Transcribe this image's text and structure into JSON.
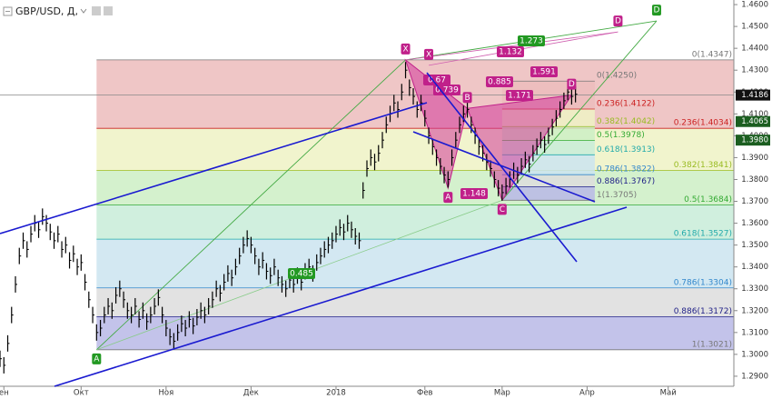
{
  "chart_data": {
    "type": "ohlc",
    "title": "GBP/USD, Д,",
    "xlim": [
      0,
      190
    ],
    "xticks": [
      {
        "value": 1,
        "label": "ен"
      },
      {
        "value": 21,
        "label": "Окт"
      },
      {
        "value": 43,
        "label": "Ноя"
      },
      {
        "value": 65,
        "label": "Дек"
      },
      {
        "value": 87,
        "label": "2018"
      },
      {
        "value": 110,
        "label": "Фев"
      },
      {
        "value": 130,
        "label": "Мар"
      },
      {
        "value": 152,
        "label": "Апр"
      },
      {
        "value": 173,
        "label": "Май"
      }
    ],
    "ylim": [
      1.2854,
      1.4621
    ],
    "yticks": [
      {
        "value": 1.46,
        "label": "1.4600"
      },
      {
        "value": 1.45,
        "label": "1.4500"
      },
      {
        "value": 1.44,
        "label": "1.4400"
      },
      {
        "value": 1.43,
        "label": "1.4300"
      },
      {
        "value": 1.42,
        "label": "1.4200"
      },
      {
        "value": 1.41,
        "label": "1.4100"
      },
      {
        "value": 1.4,
        "label": "1.4000"
      },
      {
        "value": 1.39,
        "label": "1.3900"
      },
      {
        "value": 1.38,
        "label": "1.3800"
      },
      {
        "value": 1.37,
        "label": "1.3700"
      },
      {
        "value": 1.36,
        "label": "1.3600"
      },
      {
        "value": 1.35,
        "label": "1.3500"
      },
      {
        "value": 1.34,
        "label": "1.3400"
      },
      {
        "value": 1.33,
        "label": "1.3300"
      },
      {
        "value": 1.32,
        "label": "1.3200"
      },
      {
        "value": 1.31,
        "label": "1.3100"
      },
      {
        "value": 1.3,
        "label": "1.3000"
      },
      {
        "value": 1.29,
        "label": "1.2900"
      }
    ],
    "values": [
      1.298,
      1.295,
      1.305,
      1.318,
      1.332,
      1.345,
      1.352,
      1.348,
      1.355,
      1.36,
      1.357,
      1.363,
      1.36,
      1.356,
      1.352,
      1.355,
      1.348,
      1.35,
      1.343,
      1.346,
      1.34,
      1.342,
      1.333,
      1.325,
      1.318,
      1.31,
      1.312,
      1.318,
      1.322,
      1.32,
      1.327,
      1.33,
      1.325,
      1.32,
      1.318,
      1.322,
      1.316,
      1.32,
      1.315,
      1.318,
      1.322,
      1.326,
      1.318,
      1.312,
      1.308,
      1.306,
      1.31,
      1.314,
      1.312,
      1.316,
      1.313,
      1.317,
      1.32,
      1.318,
      1.322,
      1.325,
      1.33,
      1.328,
      1.333,
      1.337,
      1.335,
      1.34,
      1.345,
      1.35,
      1.353,
      1.35,
      1.345,
      1.34,
      1.343,
      1.338,
      1.336,
      1.34,
      1.335,
      1.332,
      1.33,
      1.334,
      1.332,
      1.336,
      1.333,
      1.338,
      1.34,
      1.337,
      1.342,
      1.345,
      1.348,
      1.35,
      1.352,
      1.355,
      1.358,
      1.356,
      1.36,
      1.357,
      1.354,
      1.352,
      1.375,
      1.385,
      1.39,
      1.388,
      1.392,
      1.398,
      1.405,
      1.41,
      1.415,
      1.412,
      1.42,
      1.43,
      1.422,
      1.418,
      1.412,
      1.415,
      1.408,
      1.4,
      1.395,
      1.39,
      1.386,
      1.382,
      1.38,
      1.39,
      1.398,
      1.405,
      1.41,
      1.412,
      1.405,
      1.4,
      1.395,
      1.392,
      1.388,
      1.385,
      1.38,
      1.376,
      1.374,
      1.377,
      1.38,
      1.384,
      1.382,
      1.386,
      1.389,
      1.387,
      1.392,
      1.395,
      1.398,
      1.396,
      1.4,
      1.404,
      1.408,
      1.412,
      1.416,
      1.42,
      1.418,
      1.419
    ],
    "color": "#000000",
    "fib_main": {
      "from": 25,
      "colors": [
        "#ecbcbc",
        "#eef2c4",
        "#cdeec4",
        "#c8ecd8",
        "#cbe4f0",
        "#dddddd",
        "#b9b9e6"
      ],
      "levels": [
        {
          "value": 1.4347,
          "label": "0(1.4347)",
          "color": "#777777"
        },
        {
          "value": 1.4034,
          "label": "0.236(1.4034)",
          "color": "#cc2222"
        },
        {
          "value": 1.3841,
          "label": "0.382(1.3841)",
          "color": "#99bb22"
        },
        {
          "value": 1.3684,
          "label": "0.5(1.3684)",
          "color": "#33aa33"
        },
        {
          "value": 1.3527,
          "label": "0.618(1.3527)",
          "color": "#22aaaa"
        },
        {
          "value": 1.3304,
          "label": "0.786(1.3304)",
          "color": "#3388cc"
        },
        {
          "value": 1.3172,
          "label": "0.886(1.3172)",
          "color": "#222288"
        },
        {
          "value": 1.3021,
          "label": "1(1.3021)",
          "color": "#777777"
        }
      ]
    },
    "fib_cd": {
      "from": 130,
      "to": 154,
      "colors": [
        "#ecbcbc",
        "#eef2c4",
        "#cdeec4",
        "#c8ecd8",
        "#cbe4f0",
        "#dddddd",
        "#b9b9e6"
      ],
      "levels": [
        {
          "value": 1.425,
          "label": "0(1.4250)",
          "color": "#777777"
        },
        {
          "value": 1.4122,
          "label": "0.236(1.4122)",
          "color": "#cc2222"
        },
        {
          "value": 1.4042,
          "label": "0.382(1.4042)",
          "color": "#99bb22"
        },
        {
          "value": 1.3978,
          "label": "0.5(1.3978)",
          "color": "#33aa33"
        },
        {
          "value": 1.3913,
          "label": "0.618(1.3913)",
          "color": "#22aaaa"
        },
        {
          "value": 1.3822,
          "label": "0.786(1.3822)",
          "color": "#3388cc"
        },
        {
          "value": 1.3767,
          "label": "0.886(1.3767)",
          "color": "#222288"
        },
        {
          "value": 1.3705,
          "label": "1(1.3705)",
          "color": "#777777"
        }
      ]
    },
    "pattern_points": [
      {
        "label": "X",
        "x": 105,
        "y": 1.4347,
        "color": "#c0208a"
      },
      {
        "label": "A",
        "x": 116,
        "y": 1.376,
        "color": "#c0208a"
      },
      {
        "label": "B",
        "x": 121,
        "y": 1.4125,
        "color": "#c0208a"
      },
      {
        "label": "C",
        "x": 130,
        "y": 1.3705,
        "color": "#c0208a"
      },
      {
        "label": "D",
        "x": 148,
        "y": 1.4186,
        "color": "#c0208a"
      },
      {
        "label": "X",
        "x": 111,
        "y": 1.4322,
        "color": "#c0208a"
      },
      {
        "label": "D",
        "x": 160,
        "y": 1.4475,
        "color": "#c0208a"
      },
      {
        "label": "A",
        "x": 25,
        "y": 1.3021,
        "color": "#229922"
      },
      {
        "label": "D",
        "x": 170,
        "y": 1.4525,
        "color": "#229922"
      }
    ],
    "ratios": [
      {
        "value": 0.67,
        "color": "#c0208a"
      },
      {
        "value": 0.739,
        "color": "#c0208a"
      },
      {
        "value": 0.885,
        "color": "#c0208a"
      },
      {
        "value": 1.171,
        "color": "#c0208a"
      },
      {
        "value": 1.591,
        "color": "#c0208a"
      },
      {
        "value": 1.132,
        "color": "#c0208a"
      },
      {
        "value": 1.273,
        "color": "#229922"
      },
      {
        "value": 1.148,
        "color": "#c0208a"
      },
      {
        "value": 0.485,
        "color": "#229922"
      }
    ],
    "price_tags": [
      {
        "value": 1.4186,
        "color": "#111111"
      },
      {
        "value": 1.4065,
        "color": "#1b5e20"
      },
      {
        "value": 1.398,
        "label": "1.3980",
        "color": "#1b5e20"
      }
    ]
  }
}
